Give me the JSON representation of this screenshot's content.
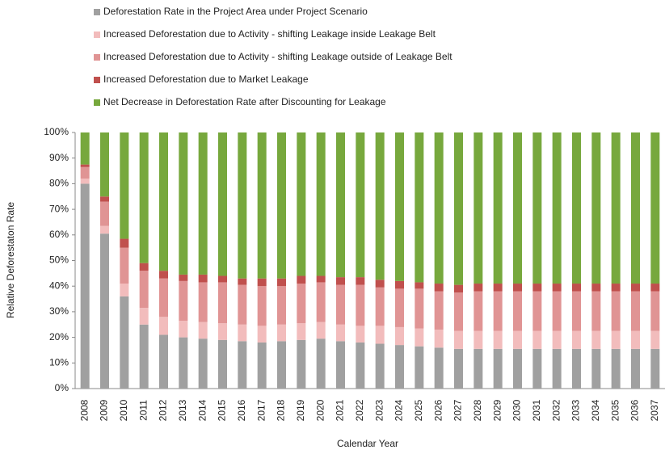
{
  "chart_data": {
    "type": "stacked_bar",
    "x_label": "Calendar Year",
    "y_label": "Relative Deforestaton Rate",
    "categories": [
      "2008",
      "2009",
      "2010",
      "2011",
      "2012",
      "2013",
      "2014",
      "2015",
      "2016",
      "2017",
      "2018",
      "2019",
      "2020",
      "2021",
      "2022",
      "2023",
      "2024",
      "2025",
      "2026",
      "2027",
      "2028",
      "2029",
      "2030",
      "2031",
      "2032",
      "2033",
      "2034",
      "2035",
      "2036",
      "2037"
    ],
    "ylim": [
      0,
      100
    ],
    "yticks": [
      {
        "value": 0,
        "label": "0%"
      },
      {
        "value": 10,
        "label": "10%"
      },
      {
        "value": 20,
        "label": "20%"
      },
      {
        "value": 30,
        "label": "30%"
      },
      {
        "value": 40,
        "label": "40%"
      },
      {
        "value": 50,
        "label": "50%"
      },
      {
        "value": 60,
        "label": "60%"
      },
      {
        "value": 70,
        "label": "70%"
      },
      {
        "value": 80,
        "label": "80%"
      },
      {
        "value": 90,
        "label": "90%"
      },
      {
        "value": 100,
        "label": "100%"
      }
    ],
    "legend_position": "top",
    "series": [
      {
        "name": "Deforestation Rate in the Project Area under Project Scenario",
        "color": "#a0a0a0",
        "values": [
          80,
          60.5,
          36,
          25,
          21,
          20,
          19.5,
          19,
          18.5,
          18,
          18.5,
          19,
          19.5,
          18.5,
          18,
          17.5,
          17,
          16.5,
          16,
          15.5,
          15.5,
          15.5,
          15.5,
          15.5,
          15.5,
          15.5,
          15.5,
          15.5,
          15.5,
          15.5
        ]
      },
      {
        "name": "Increased Deforestation due to Activity - shifting Leakage inside Leakage Belt",
        "color": "#f2bcbc",
        "values": [
          2,
          3,
          5,
          6.5,
          7,
          6.5,
          6.5,
          6.5,
          6.5,
          6.5,
          6.5,
          6.5,
          6.5,
          6.5,
          6.5,
          7,
          7,
          7,
          7,
          7,
          7,
          7,
          7,
          7,
          7,
          7,
          7,
          7,
          7,
          7
        ]
      },
      {
        "name": "Increased Deforestation due to Activity - shifting Leakage outside of Leakage Belt",
        "color": "#e09494",
        "values": [
          4.5,
          9.5,
          14,
          14.5,
          15,
          15.5,
          15.5,
          16,
          15.5,
          15.5,
          15,
          15.5,
          15.5,
          15.5,
          16,
          15,
          15,
          15.5,
          15,
          15,
          15.5,
          15.5,
          15.5,
          15.5,
          15.5,
          15.5,
          15.5,
          15.5,
          15.5,
          15.5
        ]
      },
      {
        "name": "Increased Deforestation due to Market Leakage",
        "color": "#c0504d",
        "values": [
          1,
          2,
          3.5,
          3,
          3,
          2.5,
          3,
          2.5,
          2.5,
          3,
          3,
          3,
          2.5,
          3,
          3,
          3,
          3,
          2.5,
          3,
          3,
          3,
          3,
          3,
          3,
          3,
          3,
          3,
          3,
          3,
          3
        ]
      },
      {
        "name": "Net Decrease in Deforestation Rate after Discounting for Leakage",
        "color": "#77a83d",
        "values": [
          12.5,
          25,
          41.5,
          51,
          54,
          55.5,
          55.5,
          56,
          57,
          57,
          57,
          56,
          56,
          56.5,
          56.5,
          57.5,
          58,
          58.5,
          59,
          59.5,
          59,
          59,
          59,
          59,
          59,
          59,
          59,
          59,
          59,
          59
        ]
      }
    ]
  }
}
